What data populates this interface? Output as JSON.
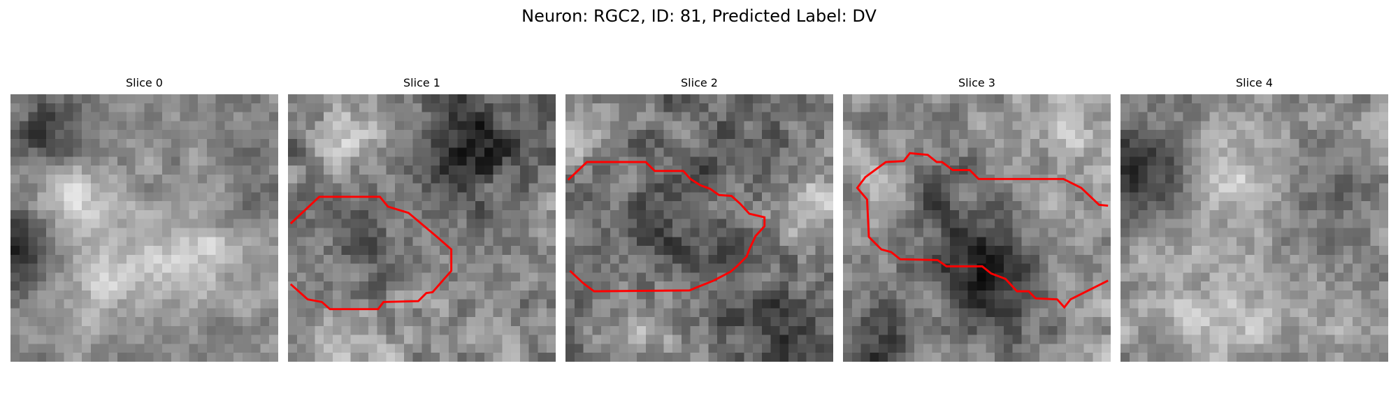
{
  "figure": {
    "title": "Neuron: RGC2, ID: 81, Predicted Label: DV"
  },
  "colors": {
    "contour": "#ff0000",
    "background": "#ffffff"
  },
  "slices": [
    {
      "title": "Slice 0",
      "has_contour": false
    },
    {
      "title": "Slice 1",
      "has_contour": true
    },
    {
      "title": "Slice 2",
      "has_contour": true
    },
    {
      "title": "Slice 3",
      "has_contour": true
    },
    {
      "title": "Slice 4",
      "has_contour": false
    }
  ]
}
